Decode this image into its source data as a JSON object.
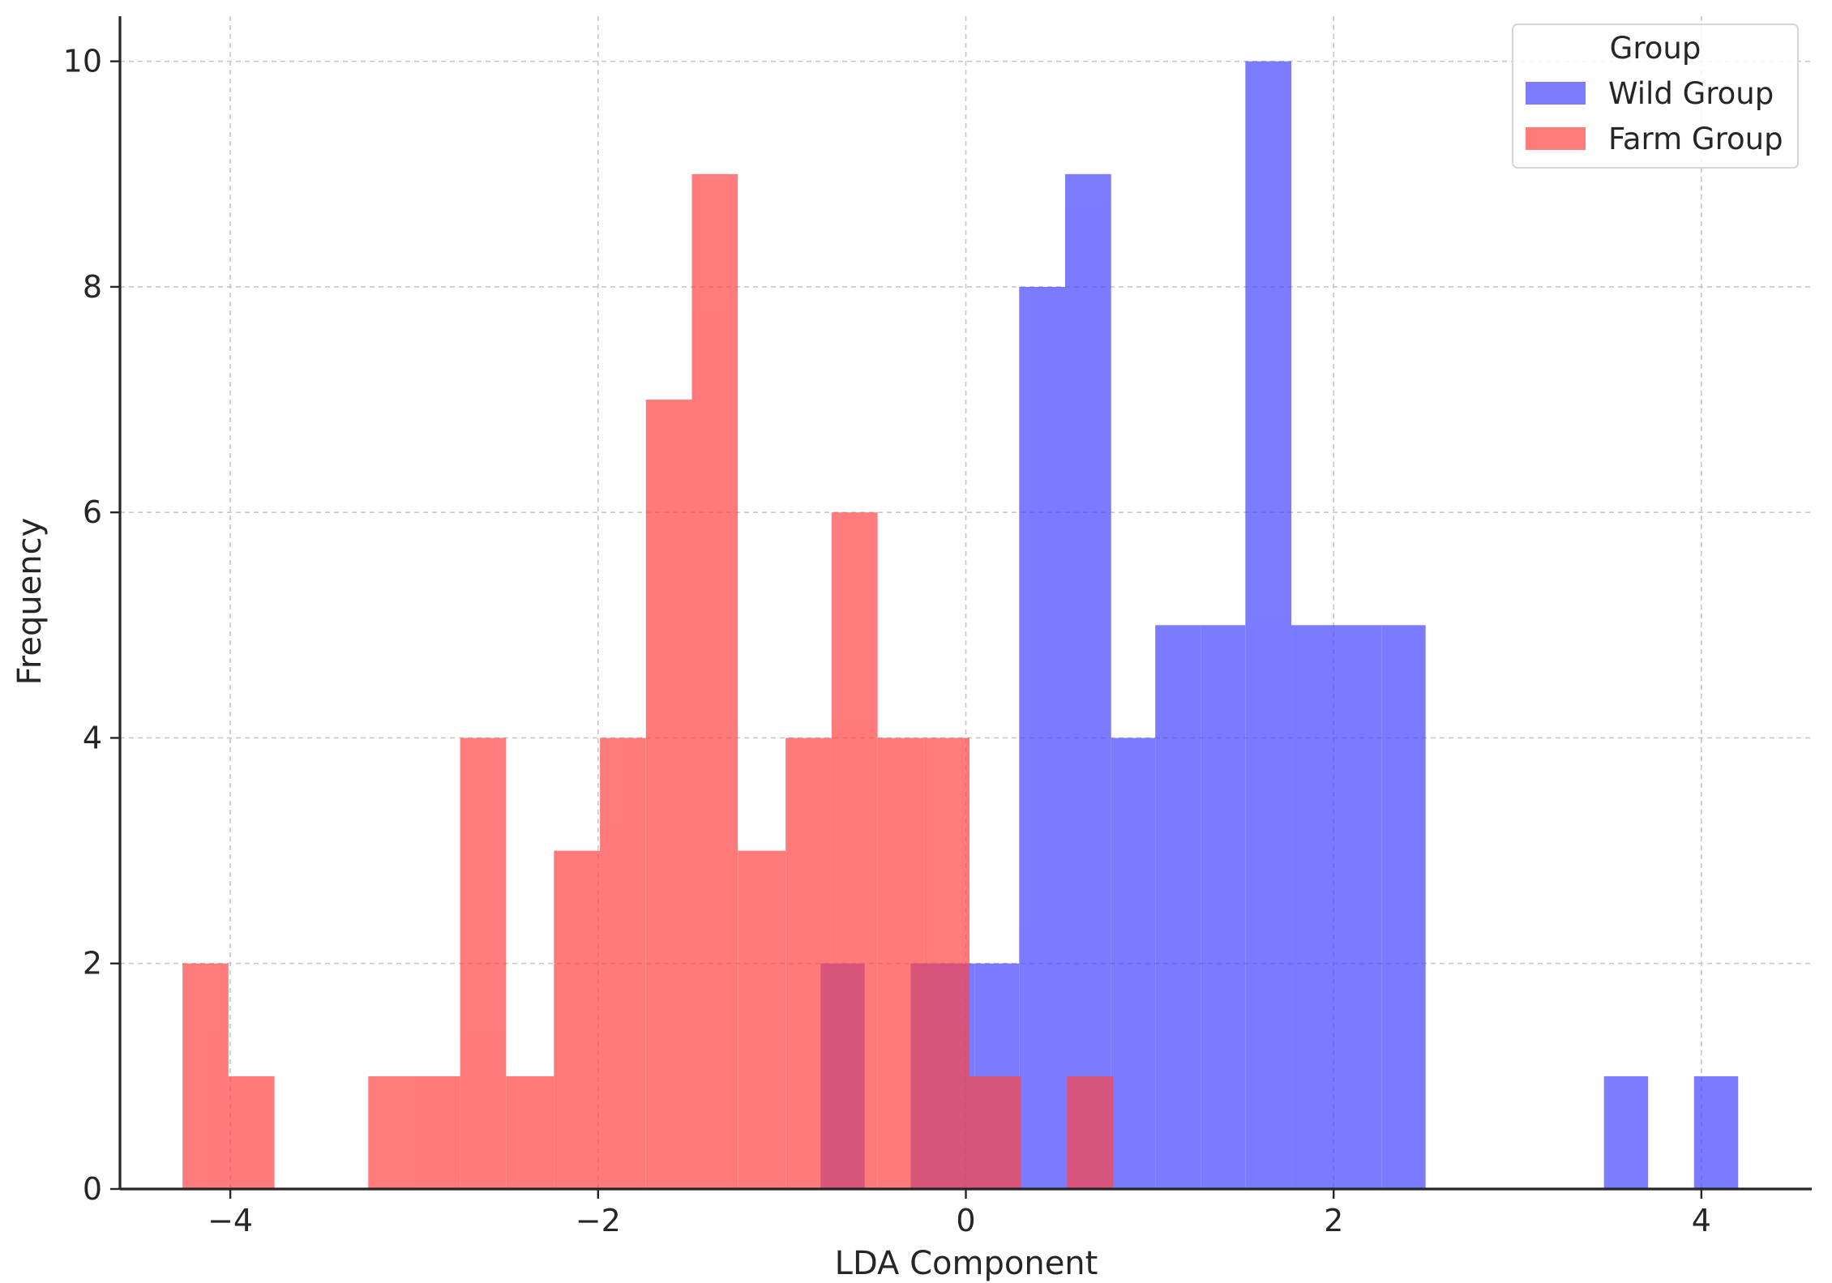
{
  "chart_data": {
    "type": "bar",
    "subtype": "histogram",
    "title": "",
    "xlabel": "LDA Component",
    "ylabel": "Frequency",
    "xlim": [
      -4.6,
      4.6
    ],
    "ylim": [
      0,
      10.4
    ],
    "xticks": [
      -4,
      -2,
      0,
      2,
      4
    ],
    "yticks": [
      0,
      2,
      4,
      6,
      8,
      10
    ],
    "x_tick_labels": [
      "−4",
      "−2",
      "0",
      "2",
      "4"
    ],
    "y_tick_labels": [
      "0",
      "2",
      "4",
      "6",
      "8",
      "10"
    ],
    "grid": true,
    "legend": {
      "title": "Group",
      "position": "top-right",
      "entries": [
        "Wild Group",
        "Farm Group"
      ]
    },
    "series": [
      {
        "name": "Wild Group",
        "color": "#4444ff",
        "bins": [
          {
            "x0": -0.79,
            "x1": -0.55,
            "count": 2
          },
          {
            "x0": -0.3,
            "x1": 0.05,
            "count": 2
          },
          {
            "x0": 0.05,
            "x1": 0.29,
            "count": 2
          },
          {
            "x0": 0.29,
            "x1": 0.54,
            "count": 8
          },
          {
            "x0": 0.54,
            "x1": 0.79,
            "count": 9
          },
          {
            "x0": 0.79,
            "x1": 1.03,
            "count": 4
          },
          {
            "x0": 1.03,
            "x1": 1.28,
            "count": 5
          },
          {
            "x0": 1.28,
            "x1": 1.52,
            "count": 5
          },
          {
            "x0": 1.52,
            "x1": 1.77,
            "count": 10
          },
          {
            "x0": 1.77,
            "x1": 2.01,
            "count": 5
          },
          {
            "x0": 2.01,
            "x1": 2.26,
            "count": 5
          },
          {
            "x0": 2.26,
            "x1": 2.5,
            "count": 5
          },
          {
            "x0": 3.47,
            "x1": 3.71,
            "count": 1
          },
          {
            "x0": 3.96,
            "x1": 4.2,
            "count": 1
          }
        ]
      },
      {
        "name": "Farm Group",
        "color": "#ff4444",
        "bins": [
          {
            "x0": -4.26,
            "x1": -4.01,
            "count": 2
          },
          {
            "x0": -4.01,
            "x1": -3.76,
            "count": 1
          },
          {
            "x0": -3.25,
            "x1": -3.0,
            "count": 1
          },
          {
            "x0": -3.0,
            "x1": -2.75,
            "count": 1
          },
          {
            "x0": -2.75,
            "x1": -2.5,
            "count": 4
          },
          {
            "x0": -2.5,
            "x1": -2.24,
            "count": 1
          },
          {
            "x0": -2.24,
            "x1": -1.99,
            "count": 3
          },
          {
            "x0": -1.99,
            "x1": -1.74,
            "count": 4
          },
          {
            "x0": -1.74,
            "x1": -1.49,
            "count": 7
          },
          {
            "x0": -1.49,
            "x1": -1.24,
            "count": 9
          },
          {
            "x0": -1.24,
            "x1": -0.98,
            "count": 3
          },
          {
            "x0": -0.98,
            "x1": -0.73,
            "count": 4
          },
          {
            "x0": -0.73,
            "x1": -0.48,
            "count": 6
          },
          {
            "x0": -0.48,
            "x1": -0.23,
            "count": 4
          },
          {
            "x0": -0.23,
            "x1": 0.02,
            "count": 4
          },
          {
            "x0": 0.02,
            "x1": 0.3,
            "count": 1
          },
          {
            "x0": 0.55,
            "x1": 0.8,
            "count": 1
          }
        ]
      }
    ]
  }
}
